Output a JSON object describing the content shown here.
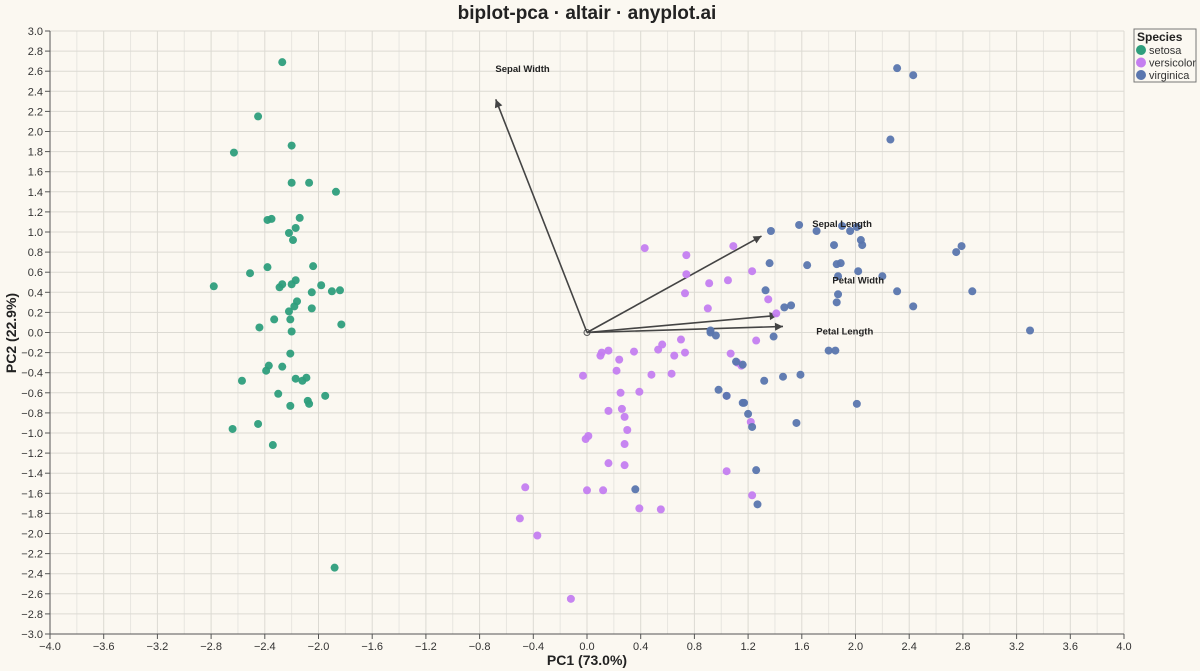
{
  "chart_data": {
    "type": "scatter",
    "title": "biplot-pca · altair · anyplot.ai",
    "xlabel": "PC1 (73.0%)",
    "ylabel": "PC2 (22.9%)",
    "xlim": [
      -4.0,
      4.0
    ],
    "ylim": [
      -3.0,
      3.0
    ],
    "x_ticks": [
      "−4.0",
      "−3.6",
      "−3.2",
      "−2.8",
      "−2.4",
      "−2.0",
      "−1.6",
      "−1.2",
      "−0.8",
      "−0.4",
      "0.0",
      "0.4",
      "0.8",
      "1.2",
      "1.6",
      "2.0",
      "2.4",
      "2.8",
      "3.2",
      "3.6",
      "4.0"
    ],
    "y_ticks": [
      "3.0",
      "2.8",
      "2.6",
      "2.4",
      "2.2",
      "2.0",
      "1.8",
      "1.6",
      "1.4",
      "1.2",
      "1.0",
      "0.8",
      "0.6",
      "0.4",
      "0.2",
      "0.0",
      "−0.2",
      "−0.4",
      "−0.6",
      "−0.8",
      "−1.0",
      "−1.2",
      "−1.4",
      "−1.6",
      "−1.8",
      "−2.0",
      "−2.2",
      "−2.4",
      "−2.6",
      "−2.8",
      "−3.0"
    ],
    "grid": true,
    "legend": {
      "title": "Species",
      "placement": "top-right",
      "entries": [
        {
          "name": "setosa",
          "color": "#2E9E7C"
        },
        {
          "name": "versicolor",
          "color": "#C47EF0"
        },
        {
          "name": "virginica",
          "color": "#5A76AE"
        }
      ]
    },
    "series": [
      {
        "name": "setosa",
        "color": "#2E9E7C",
        "points": [
          [
            -2.27,
            2.69
          ],
          [
            -2.45,
            2.15
          ],
          [
            -2.63,
            1.79
          ],
          [
            -2.2,
            1.86
          ],
          [
            -2.2,
            1.49
          ],
          [
            -2.07,
            1.49
          ],
          [
            -1.87,
            1.4
          ],
          [
            -2.38,
            1.12
          ],
          [
            -2.35,
            1.13
          ],
          [
            -2.14,
            1.14
          ],
          [
            -2.17,
            1.04
          ],
          [
            -2.22,
            0.99
          ],
          [
            -2.19,
            0.92
          ],
          [
            -2.04,
            0.66
          ],
          [
            -2.51,
            0.59
          ],
          [
            -2.38,
            0.65
          ],
          [
            -2.78,
            0.46
          ],
          [
            -2.17,
            0.52
          ],
          [
            -2.27,
            0.48
          ],
          [
            -2.29,
            0.45
          ],
          [
            -2.2,
            0.48
          ],
          [
            -1.98,
            0.47
          ],
          [
            -1.9,
            0.41
          ],
          [
            -1.84,
            0.42
          ],
          [
            -2.05,
            0.4
          ],
          [
            -2.16,
            0.31
          ],
          [
            -2.18,
            0.26
          ],
          [
            -2.05,
            0.24
          ],
          [
            -2.22,
            0.21
          ],
          [
            -2.33,
            0.13
          ],
          [
            -2.21,
            0.13
          ],
          [
            -1.83,
            0.08
          ],
          [
            -2.44,
            0.05
          ],
          [
            -2.2,
            0.01
          ],
          [
            -2.27,
            -0.34
          ],
          [
            -2.21,
            -0.21
          ],
          [
            -2.37,
            -0.33
          ],
          [
            -2.39,
            -0.38
          ],
          [
            -2.17,
            -0.46
          ],
          [
            -2.12,
            -0.48
          ],
          [
            -2.09,
            -0.45
          ],
          [
            -2.57,
            -0.48
          ],
          [
            -2.3,
            -0.61
          ],
          [
            -1.95,
            -0.63
          ],
          [
            -2.08,
            -0.68
          ],
          [
            -2.07,
            -0.71
          ],
          [
            -2.21,
            -0.73
          ],
          [
            -2.45,
            -0.91
          ],
          [
            -2.64,
            -0.96
          ],
          [
            -2.34,
            -1.12
          ],
          [
            -1.88,
            -2.34
          ]
        ]
      },
      {
        "name": "versicolor",
        "color": "#C47EF0",
        "points": [
          [
            0.43,
            0.84
          ],
          [
            0.74,
            0.77
          ],
          [
            1.09,
            0.86
          ],
          [
            1.23,
            0.61
          ],
          [
            0.74,
            0.58
          ],
          [
            1.05,
            0.52
          ],
          [
            0.73,
            0.39
          ],
          [
            0.91,
            0.49
          ],
          [
            1.35,
            0.33
          ],
          [
            0.9,
            0.24
          ],
          [
            1.41,
            0.19
          ],
          [
            1.26,
            -0.08
          ],
          [
            0.53,
            -0.17
          ],
          [
            0.7,
            -0.07
          ],
          [
            0.56,
            -0.12
          ],
          [
            0.73,
            -0.2
          ],
          [
            0.65,
            -0.23
          ],
          [
            0.35,
            -0.19
          ],
          [
            0.16,
            -0.18
          ],
          [
            0.11,
            -0.2
          ],
          [
            0.1,
            -0.23
          ],
          [
            0.24,
            -0.27
          ],
          [
            1.07,
            -0.21
          ],
          [
            1.12,
            -0.3
          ],
          [
            1.15,
            -0.33
          ],
          [
            0.22,
            -0.38
          ],
          [
            0.48,
            -0.42
          ],
          [
            0.63,
            -0.41
          ],
          [
            -0.03,
            -0.43
          ],
          [
            0.25,
            -0.6
          ],
          [
            0.39,
            -0.59
          ],
          [
            1.04,
            -0.63
          ],
          [
            0.26,
            -0.76
          ],
          [
            0.16,
            -0.78
          ],
          [
            0.28,
            -0.84
          ],
          [
            1.22,
            -0.89
          ],
          [
            0.3,
            -0.97
          ],
          [
            0.01,
            -1.03
          ],
          [
            -0.01,
            -1.06
          ],
          [
            0.28,
            -1.11
          ],
          [
            0.16,
            -1.3
          ],
          [
            0.28,
            -1.32
          ],
          [
            1.04,
            -1.38
          ],
          [
            -0.46,
            -1.54
          ],
          [
            0.12,
            -1.57
          ],
          [
            0.0,
            -1.57
          ],
          [
            1.23,
            -1.62
          ],
          [
            0.39,
            -1.75
          ],
          [
            0.55,
            -1.76
          ],
          [
            -0.5,
            -1.85
          ],
          [
            -0.37,
            -2.02
          ],
          [
            -0.12,
            -2.65
          ]
        ]
      },
      {
        "name": "virginica",
        "color": "#5A76AE",
        "points": [
          [
            2.31,
            2.63
          ],
          [
            2.43,
            2.56
          ],
          [
            2.26,
            1.92
          ],
          [
            1.37,
            1.01
          ],
          [
            1.58,
            1.07
          ],
          [
            1.71,
            1.01
          ],
          [
            1.9,
            1.06
          ],
          [
            1.96,
            1.01
          ],
          [
            2.01,
            1.05
          ],
          [
            2.04,
            0.92
          ],
          [
            2.05,
            0.87
          ],
          [
            1.84,
            0.87
          ],
          [
            2.79,
            0.86
          ],
          [
            2.75,
            0.8
          ],
          [
            1.36,
            0.69
          ],
          [
            1.64,
            0.67
          ],
          [
            1.86,
            0.68
          ],
          [
            1.89,
            0.69
          ],
          [
            2.02,
            0.61
          ],
          [
            2.2,
            0.56
          ],
          [
            1.87,
            0.56
          ],
          [
            2.31,
            0.41
          ],
          [
            2.87,
            0.41
          ],
          [
            1.33,
            0.42
          ],
          [
            1.87,
            0.38
          ],
          [
            1.86,
            0.3
          ],
          [
            1.52,
            0.27
          ],
          [
            1.47,
            0.25
          ],
          [
            2.43,
            0.26
          ],
          [
            3.3,
            0.02
          ],
          [
            0.92,
            0.02
          ],
          [
            0.92,
            0.0
          ],
          [
            0.96,
            -0.03
          ],
          [
            1.39,
            -0.04
          ],
          [
            1.8,
            -0.18
          ],
          [
            1.85,
            -0.18
          ],
          [
            1.11,
            -0.29
          ],
          [
            1.16,
            -0.32
          ],
          [
            1.59,
            -0.42
          ],
          [
            1.46,
            -0.44
          ],
          [
            1.32,
            -0.48
          ],
          [
            0.98,
            -0.57
          ],
          [
            1.04,
            -0.63
          ],
          [
            1.16,
            -0.7
          ],
          [
            1.17,
            -0.7
          ],
          [
            2.01,
            -0.71
          ],
          [
            1.2,
            -0.81
          ],
          [
            1.56,
            -0.9
          ],
          [
            1.23,
            -0.94
          ],
          [
            1.26,
            -1.37
          ],
          [
            0.36,
            -1.56
          ],
          [
            1.27,
            -1.71
          ]
        ]
      }
    ],
    "loadings": [
      {
        "label": "Sepal Width",
        "x": -0.68,
        "y": 2.32
      },
      {
        "label": "Sepal Length",
        "x": 1.3,
        "y": 0.96
      },
      {
        "label": "Petal Width",
        "x": 1.42,
        "y": 0.17
      },
      {
        "label": "Petal Length",
        "x": 1.46,
        "y": 0.06
      }
    ]
  }
}
